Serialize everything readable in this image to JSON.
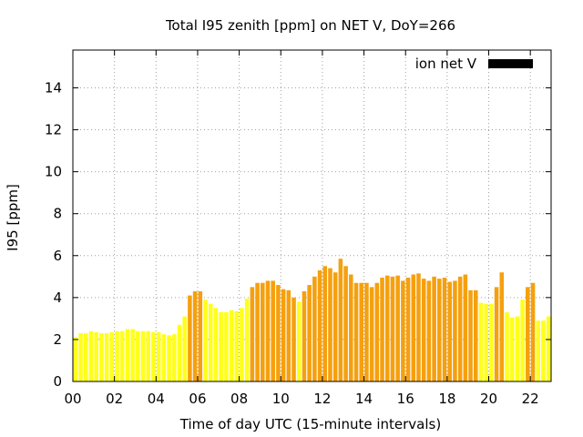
{
  "chart_data": {
    "type": "bar",
    "title": "Total I95 zenith [ppm] on NET V, DoY=266",
    "xlabel": "Time of day UTC (15-minute intervals)",
    "ylabel": "I95 [ppm]",
    "xlim": [
      0,
      23
    ],
    "ylim": [
      0,
      15.8
    ],
    "xticks": [
      0,
      2,
      4,
      6,
      8,
      10,
      12,
      14,
      16,
      18,
      20,
      22
    ],
    "xtick_labels": [
      "00",
      "02",
      "04",
      "06",
      "08",
      "10",
      "12",
      "14",
      "16",
      "18",
      "20",
      "22"
    ],
    "yticks": [
      0,
      2,
      4,
      6,
      8,
      10,
      12,
      14
    ],
    "ytick_labels": [
      "0",
      "2",
      "4",
      "6",
      "8",
      "10",
      "12",
      "14"
    ],
    "grid": true,
    "legend": {
      "position": "top-right",
      "entries": [
        {
          "label": "ion net V",
          "color": "#000000"
        }
      ]
    },
    "bar_interval_hours": 0.25,
    "colors": {
      "low": "#ffff1a",
      "high": "#f5a00f",
      "threshold": 4.0
    },
    "x": [
      0.0,
      0.25,
      0.5,
      0.75,
      1.0,
      1.25,
      1.5,
      1.75,
      2.0,
      2.25,
      2.5,
      2.75,
      3.0,
      3.25,
      3.5,
      3.75,
      4.0,
      4.25,
      4.5,
      4.75,
      5.0,
      5.25,
      5.5,
      5.75,
      6.0,
      6.25,
      6.5,
      6.75,
      7.0,
      7.25,
      7.5,
      7.75,
      8.0,
      8.25,
      8.5,
      8.75,
      9.0,
      9.25,
      9.5,
      9.75,
      10.0,
      10.25,
      10.5,
      10.75,
      11.0,
      11.25,
      11.5,
      11.75,
      12.0,
      12.25,
      12.5,
      12.75,
      13.0,
      13.25,
      13.5,
      13.75,
      14.0,
      14.25,
      14.5,
      14.75,
      15.0,
      15.25,
      15.5,
      15.75,
      16.0,
      16.25,
      16.5,
      16.75,
      17.0,
      17.25,
      17.5,
      17.75,
      18.0,
      18.25,
      18.5,
      18.75,
      19.0,
      19.25,
      19.5,
      19.75,
      20.0,
      20.25,
      20.5,
      20.75,
      21.0,
      21.25,
      21.5,
      21.75,
      22.0,
      22.25,
      22.5,
      22.75
    ],
    "values": [
      2.1,
      2.3,
      2.3,
      2.4,
      2.35,
      2.3,
      2.3,
      2.35,
      2.4,
      2.4,
      2.5,
      2.5,
      2.4,
      2.4,
      2.4,
      2.35,
      2.35,
      2.25,
      2.2,
      2.25,
      2.7,
      3.1,
      4.1,
      4.3,
      4.3,
      3.9,
      3.7,
      3.5,
      3.3,
      3.3,
      3.4,
      3.35,
      3.5,
      3.95,
      4.5,
      4.7,
      4.7,
      4.8,
      4.8,
      4.6,
      4.4,
      4.35,
      4.0,
      3.8,
      4.3,
      4.6,
      5.0,
      5.3,
      5.5,
      5.4,
      5.2,
      5.85,
      5.5,
      5.1,
      4.7,
      4.7,
      4.7,
      4.5,
      4.7,
      4.95,
      5.05,
      5.0,
      5.05,
      4.8,
      4.95,
      5.1,
      5.15,
      4.9,
      4.8,
      5.0,
      4.9,
      4.95,
      4.75,
      4.8,
      5.0,
      5.1,
      4.35,
      4.35,
      3.75,
      3.7,
      3.7,
      4.5,
      5.2,
      3.3,
      3.05,
      3.1,
      3.9,
      4.5,
      4.7,
      2.9,
      2.9,
      3.1
    ]
  }
}
